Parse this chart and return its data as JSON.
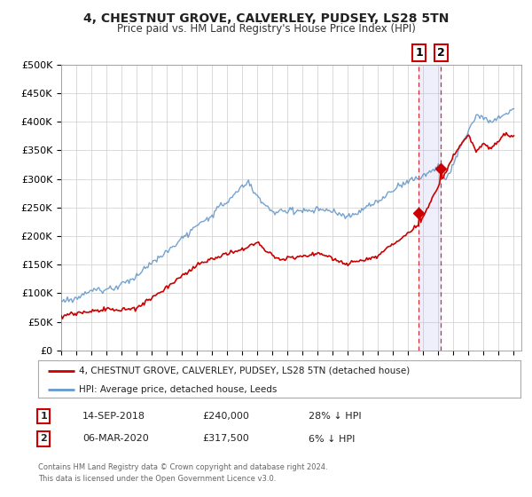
{
  "title": "4, CHESTNUT GROVE, CALVERLEY, PUDSEY, LS28 5TN",
  "subtitle": "Price paid vs. HM Land Registry's House Price Index (HPI)",
  "ylim": [
    0,
    500000
  ],
  "yticks": [
    0,
    50000,
    100000,
    150000,
    200000,
    250000,
    300000,
    350000,
    400000,
    450000,
    500000
  ],
  "ytick_labels": [
    "£0",
    "£50K",
    "£100K",
    "£150K",
    "£200K",
    "£250K",
    "£300K",
    "£350K",
    "£400K",
    "£450K",
    "£500K"
  ],
  "xlim_start": 1995.0,
  "xlim_end": 2025.5,
  "marker1_x": 2018.71,
  "marker1_y": 240000,
  "marker2_x": 2020.17,
  "marker2_y": 317500,
  "vline1_x": 2018.71,
  "vline2_x": 2020.17,
  "legend_line1": "4, CHESTNUT GROVE, CALVERLEY, PUDSEY, LS28 5TN (detached house)",
  "legend_line2": "HPI: Average price, detached house, Leeds",
  "table_row1": [
    "1",
    "14-SEP-2018",
    "£240,000",
    "28% ↓ HPI"
  ],
  "table_row2": [
    "2",
    "06-MAR-2020",
    "£317,500",
    "6% ↓ HPI"
  ],
  "footer1": "Contains HM Land Registry data © Crown copyright and database right 2024.",
  "footer2": "This data is licensed under the Open Government Licence v3.0.",
  "red_color": "#cc0000",
  "blue_color": "#6699cc",
  "bg_color": "#ffffff",
  "grid_color": "#cccccc"
}
